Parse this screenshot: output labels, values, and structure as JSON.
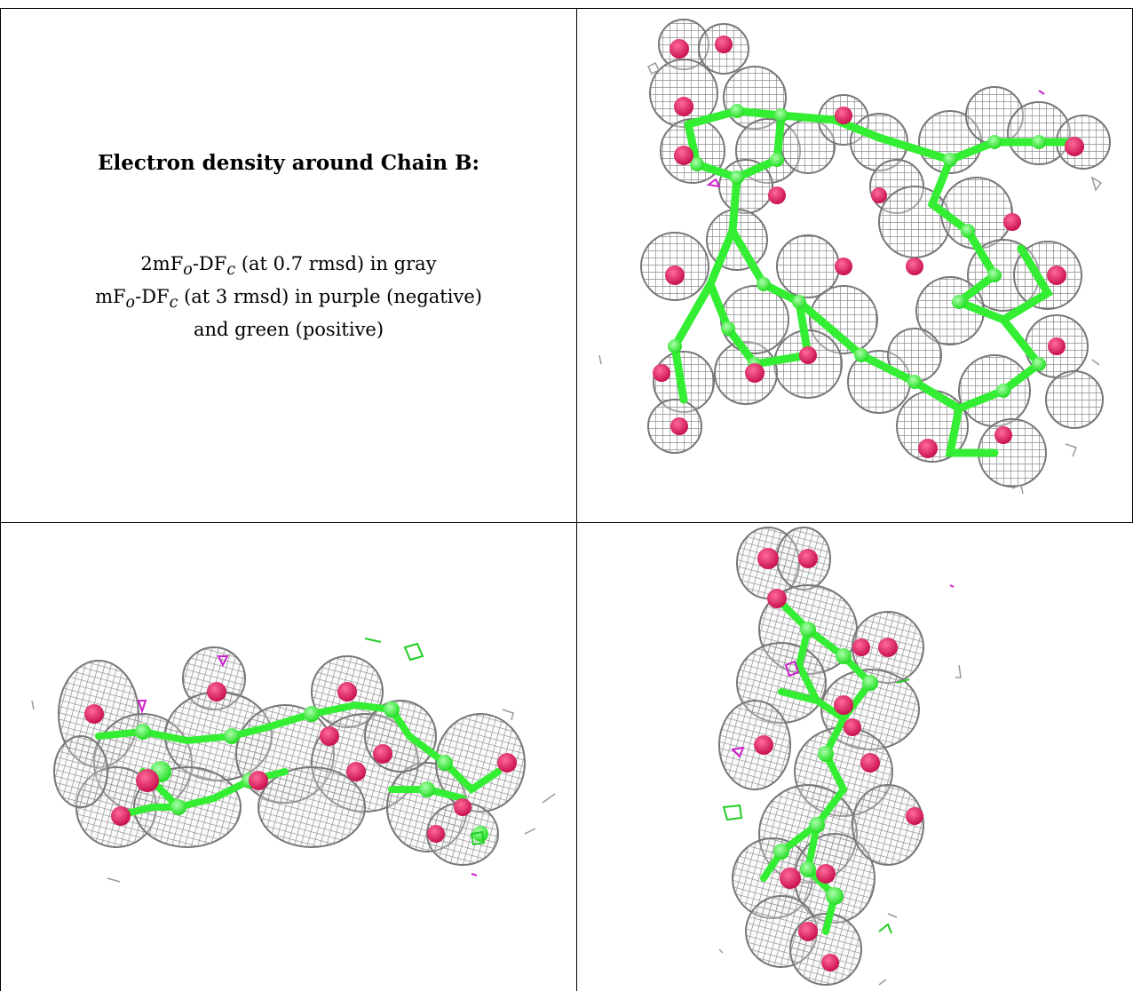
{
  "caption": {
    "title": "Electron density around Chain B:",
    "line1_a": "2mF",
    "line1_sub1": "o",
    "line1_b": "-DF",
    "line1_sub2": "c",
    "line1_c": " (at 0.7 rmsd) in gray",
    "line2_a": "mF",
    "line2_sub1": "o",
    "line2_b": "-DF",
    "line2_sub2": "c",
    "line2_c": " (at 3 rmsd) in purple (negative)",
    "line3": "and green (positive)"
  },
  "colors": {
    "mesh_gray": "#9a9a9a",
    "carbon_green": "#33ee33",
    "oxygen_red": "#e0145a",
    "negative_purple": "#cc22cc",
    "positive_green": "#22cc22"
  },
  "panels": {
    "top_right": "density-view-front",
    "bottom_left": "density-view-side",
    "bottom_right": "density-view-end"
  }
}
